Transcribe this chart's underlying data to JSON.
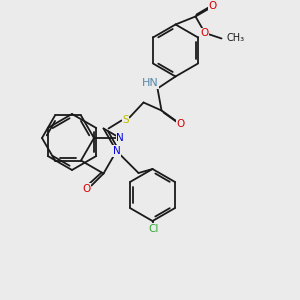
{
  "bg_color": "#ebebeb",
  "bond_color": "#1a1a1a",
  "colors": {
    "N": "#0000dd",
    "O": "#dd0000",
    "S": "#bbbb00",
    "Cl": "#33aa33",
    "H_on_N": "#5588aa",
    "C": "#1a1a1a"
  },
  "font_size": 7.5,
  "bond_lw": 1.3
}
